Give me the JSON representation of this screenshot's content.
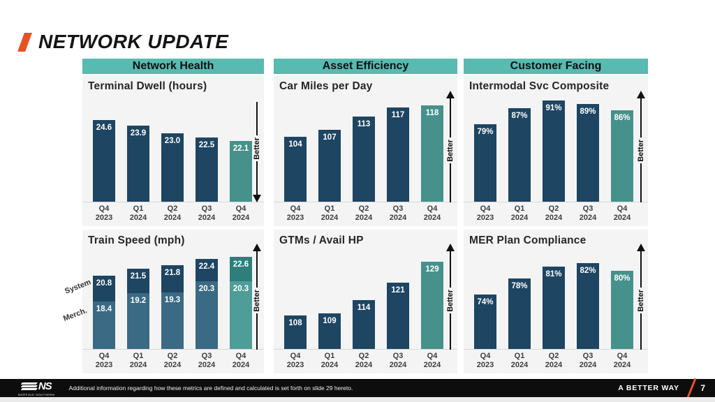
{
  "title": "NETWORK UPDATE",
  "colors": {
    "header_teal": "#58BAB1",
    "navy": "#1E4562",
    "navy_light": "#3A6A84",
    "teal": "#46918B",
    "teal_dark": "#2E7F7B",
    "teal_light": "#4F9D98",
    "orange": "#E65125",
    "panel_bg": "#F4F4F4",
    "footer_bg": "#0D0D0D"
  },
  "column_headers": [
    {
      "label": "Network Health"
    },
    {
      "label": "Asset Efficiency"
    },
    {
      "label": "Customer Facing"
    }
  ],
  "chart_data": [
    {
      "id": "terminal-dwell",
      "type": "bar",
      "title": "Terminal Dwell (hours)",
      "categories": [
        "Q4 2023",
        "Q1 2024",
        "Q2 2024",
        "Q3 2024",
        "Q4 2024"
      ],
      "values": [
        24.6,
        23.9,
        23.0,
        22.5,
        22.1
      ],
      "labels": [
        "24.6",
        "23.9",
        "23.0",
        "22.5",
        "22.1"
      ],
      "ylim": [
        14.9,
        27.4
      ],
      "better": "down",
      "better_label": "Better",
      "highlight_last": true
    },
    {
      "id": "car-miles-per-day",
      "type": "bar",
      "title": "Car Miles per Day",
      "categories": [
        "Q4 2023",
        "Q1 2024",
        "Q2 2024",
        "Q3 2024",
        "Q4 2024"
      ],
      "values": [
        104,
        107,
        113,
        117,
        118
      ],
      "labels": [
        "104",
        "107",
        "113",
        "117",
        "118"
      ],
      "ylim": [
        75,
        122
      ],
      "better": "up",
      "better_label": "Better",
      "highlight_last": true
    },
    {
      "id": "intermodal-svc-composite",
      "type": "bar",
      "title": "Intermodal Svc Composite",
      "categories": [
        "Q4 2023",
        "Q1 2024",
        "Q2 2024",
        "Q3 2024",
        "Q4 2024"
      ],
      "values": [
        79,
        87,
        91,
        89,
        86
      ],
      "labels": [
        "79%",
        "87%",
        "91%",
        "89%",
        "86%"
      ],
      "ylim": [
        40,
        93
      ],
      "better": "up",
      "better_label": "Better",
      "highlight_last": true
    },
    {
      "id": "train-speed",
      "type": "overlap-bar",
      "title": "Train Speed (mph)",
      "categories": [
        "Q4 2023",
        "Q1 2024",
        "Q2 2024",
        "Q3 2024",
        "Q4 2024"
      ],
      "series": [
        {
          "name": "System",
          "values": [
            20.8,
            21.5,
            21.8,
            22.4,
            22.6
          ],
          "labels": [
            "20.8",
            "21.5",
            "21.8",
            "22.4",
            "22.6"
          ]
        },
        {
          "name": "Merch.",
          "values": [
            18.4,
            19.2,
            19.3,
            20.3,
            20.3
          ],
          "labels": [
            "18.4",
            "19.2",
            "19.3",
            "20.3",
            "20.3"
          ]
        }
      ],
      "ylim": [
        14,
        23.3
      ],
      "better": "up",
      "better_label": "Better",
      "highlight_last": true
    },
    {
      "id": "gtms-avail-hp",
      "type": "bar",
      "title": "GTMs / Avail HP",
      "categories": [
        "Q4 2023",
        "Q1 2024",
        "Q2 2024",
        "Q3 2024",
        "Q4 2024"
      ],
      "values": [
        108,
        109,
        114,
        121,
        129
      ],
      "labels": [
        "108",
        "109",
        "114",
        "121",
        "129"
      ],
      "ylim": [
        95,
        134
      ],
      "better": "up",
      "better_label": "Better",
      "highlight_last": true
    },
    {
      "id": "mer-plan-compliance",
      "type": "bar",
      "title": "MER Plan Compliance",
      "categories": [
        "Q4 2023",
        "Q1 2024",
        "Q2 2024",
        "Q3 2024",
        "Q4 2024"
      ],
      "values": [
        74,
        78,
        81,
        82,
        80
      ],
      "labels": [
        "74%",
        "78%",
        "81%",
        "82%",
        "80%"
      ],
      "ylim": [
        60,
        85.5
      ],
      "better": "up",
      "better_label": "Better",
      "highlight_last": true
    }
  ],
  "footer": {
    "logo": "NS",
    "logo_sub": "NORFOLK SOUTHERN",
    "disclaimer": "Additional information regarding how these metrics are defined and calculated is set forth on slide 29 hereto.",
    "tagline": "A BETTER WAY",
    "page_number": "7"
  }
}
